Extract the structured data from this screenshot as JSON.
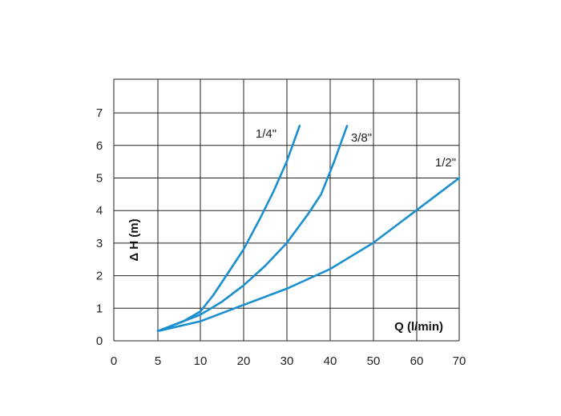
{
  "chart_data": {
    "type": "line",
    "xlabel": "Q (l/min)",
    "ylabel": "Δ H (m)",
    "xlim": [
      0,
      80
    ],
    "ylim": [
      0,
      8
    ],
    "grid": true,
    "x_ticks": [
      "0",
      "5",
      "10",
      "20",
      "30",
      "40",
      "50",
      "60",
      "70"
    ],
    "y_ticks": [
      "0",
      "1",
      "2",
      "3",
      "4",
      "5",
      "6",
      "7"
    ],
    "line_color": "#1a8fd0",
    "series": [
      {
        "name": "1/4\"",
        "points": [
          [
            5,
            0.3
          ],
          [
            8,
            0.6
          ],
          [
            10,
            0.9
          ],
          [
            13,
            1.4
          ],
          [
            16,
            2.0
          ],
          [
            20,
            2.8
          ],
          [
            24,
            3.8
          ],
          [
            27,
            4.6
          ],
          [
            30,
            5.5
          ],
          [
            33,
            6.6
          ]
        ]
      },
      {
        "name": "3/8\"",
        "points": [
          [
            5,
            0.3
          ],
          [
            10,
            0.8
          ],
          [
            15,
            1.2
          ],
          [
            20,
            1.7
          ],
          [
            25,
            2.3
          ],
          [
            30,
            3.0
          ],
          [
            35,
            3.9
          ],
          [
            38,
            4.5
          ],
          [
            41,
            5.5
          ],
          [
            44,
            6.6
          ]
        ]
      },
      {
        "name": "1/2\"",
        "points": [
          [
            5,
            0.3
          ],
          [
            10,
            0.6
          ],
          [
            20,
            1.1
          ],
          [
            30,
            1.6
          ],
          [
            40,
            2.2
          ],
          [
            45,
            2.6
          ],
          [
            50,
            3.0
          ],
          [
            55,
            3.5
          ],
          [
            60,
            4.0
          ],
          [
            65,
            4.5
          ],
          [
            70,
            5.0
          ]
        ]
      }
    ]
  }
}
